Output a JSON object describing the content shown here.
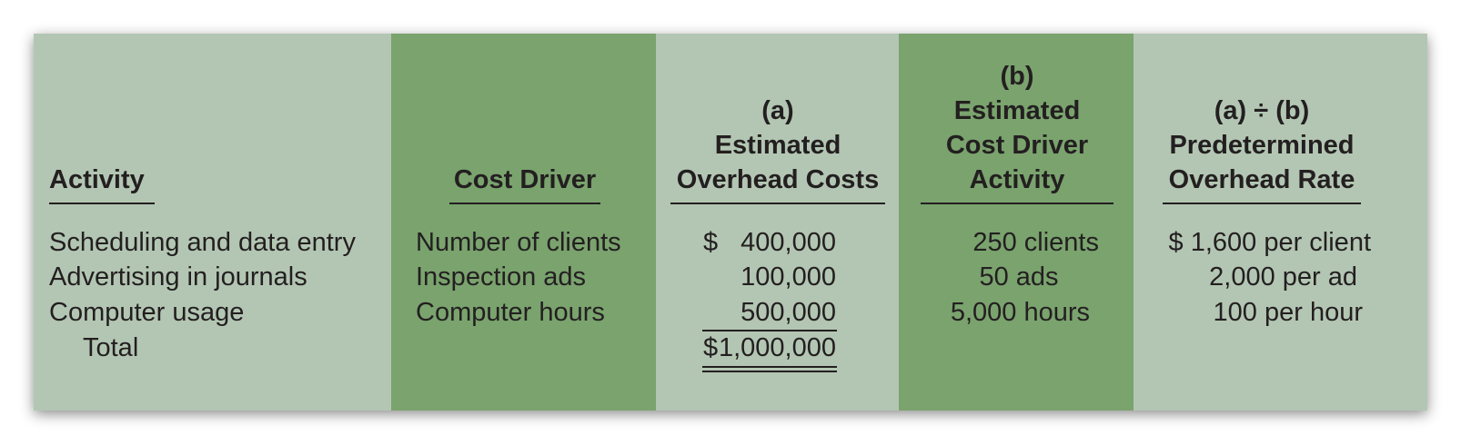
{
  "headers": {
    "activity": "Activity",
    "cost_driver": "Cost Driver",
    "est_overhead": [
      "(a)",
      "Estimated",
      "Overhead Costs"
    ],
    "est_activity": [
      "(b)",
      "Estimated",
      "Cost Driver",
      "Activity"
    ],
    "rate": [
      "(a) ÷ (b)",
      "Predetermined",
      "Overhead Rate"
    ]
  },
  "rows": [
    {
      "activity": "Scheduling and data entry",
      "driver": "Number of clients",
      "currency": "$",
      "cost": "400,000",
      "quantity": "250 clients",
      "rate": "$ 1,600 per client"
    },
    {
      "activity": "Advertising in journals",
      "driver": "Inspection ads",
      "currency": "",
      "cost": "100,000",
      "quantity": "50 ads",
      "rate": "2,000 per ad"
    },
    {
      "activity": "Computer usage",
      "driver": "Computer hours",
      "currency": "",
      "cost": "500,000",
      "quantity": "5,000 hours",
      "rate": "100 per hour"
    }
  ],
  "total": {
    "label": "Total",
    "currency": "$",
    "amount": "1,000,000"
  },
  "colors": {
    "light_column": "#b3c6b3",
    "dark_column": "#7aa36e",
    "text": "#231f20"
  }
}
